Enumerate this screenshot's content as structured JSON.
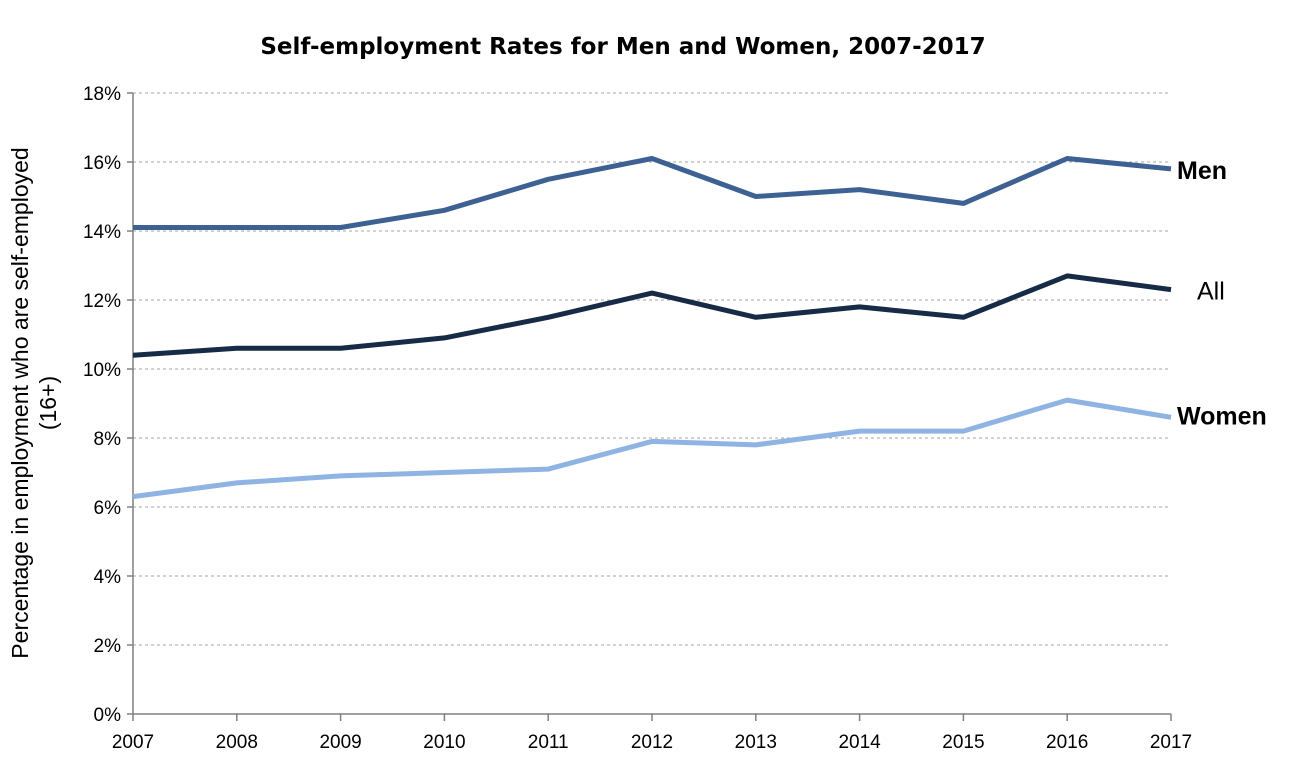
{
  "chart_data": {
    "type": "line",
    "title": "Self-employment Rates for Men and Women, 2007-2017",
    "xlabel": "",
    "ylabel_lines": [
      "Percentage in employment  who are self-employed",
      "(16+)"
    ],
    "x": [
      "2007",
      "2008",
      "2009",
      "2010",
      "2011",
      "2012",
      "2013",
      "2014",
      "2015",
      "2016",
      "2017"
    ],
    "ylim": [
      0,
      18
    ],
    "yticks": [
      0,
      2,
      4,
      6,
      8,
      10,
      12,
      14,
      16,
      18
    ],
    "yticks_labels": [
      "0%",
      "2%",
      "4%",
      "6%",
      "8%",
      "10%",
      "12%",
      "14%",
      "16%",
      "18%"
    ],
    "grid": "horizontal dashed",
    "legend": "direct labels at right end of lines",
    "series": [
      {
        "name": "Men",
        "color": "#3d6192",
        "label_bold": true,
        "values": [
          14.1,
          14.1,
          14.1,
          14.6,
          15.5,
          16.1,
          15.0,
          15.2,
          14.8,
          16.1,
          15.8
        ]
      },
      {
        "name": "All",
        "color": "#172a46",
        "label_bold": false,
        "values": [
          10.4,
          10.6,
          10.6,
          10.9,
          11.5,
          12.2,
          11.5,
          11.8,
          11.5,
          12.7,
          12.3
        ]
      },
      {
        "name": "Women",
        "color": "#8fb4e3",
        "label_bold": true,
        "values": [
          6.3,
          6.7,
          6.9,
          7.0,
          7.1,
          7.9,
          7.8,
          8.2,
          8.2,
          9.1,
          8.6
        ]
      }
    ]
  }
}
